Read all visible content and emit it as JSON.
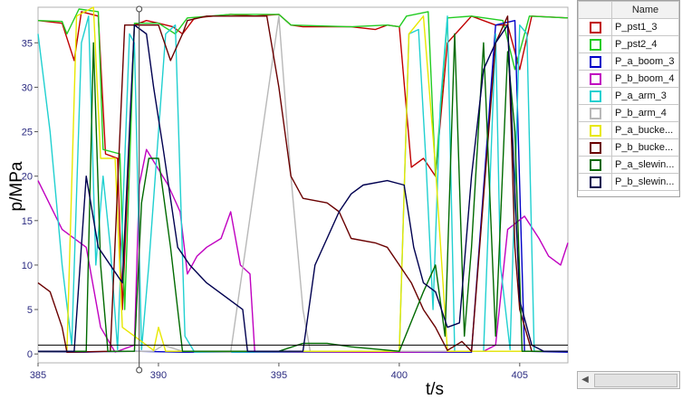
{
  "chart_data": {
    "type": "line",
    "xlabel": "t/s",
    "ylabel": "p/MPa",
    "xlim": [
      385,
      407
    ],
    "ylim": [
      -1,
      39
    ],
    "xticks": [
      385,
      390,
      395,
      400,
      405
    ],
    "yticks": [
      0,
      5,
      10,
      15,
      20,
      25,
      30,
      35
    ],
    "grid": false,
    "legend_position": "right",
    "cursor": {
      "x": 389.2
    },
    "series": [
      {
        "name": "P_pst1_3",
        "color": "#c00000",
        "points": [
          [
            385,
            37.5
          ],
          [
            386,
            37.2
          ],
          [
            386.5,
            33
          ],
          [
            386.8,
            38.5
          ],
          [
            387.5,
            38
          ],
          [
            387.8,
            22.5
          ],
          [
            388.3,
            22
          ],
          [
            388.5,
            5
          ],
          [
            389,
            37
          ],
          [
            389.5,
            37.5
          ],
          [
            390,
            37.2
          ],
          [
            390.6,
            36.8
          ],
          [
            391,
            36
          ],
          [
            391.5,
            37.8
          ],
          [
            393,
            38.2
          ],
          [
            394,
            38
          ],
          [
            395,
            38.2
          ],
          [
            395.5,
            37
          ],
          [
            396,
            36.8
          ],
          [
            398,
            36.8
          ],
          [
            399,
            36.5
          ],
          [
            399.5,
            37
          ],
          [
            400,
            36.8
          ],
          [
            400.5,
            21
          ],
          [
            401,
            22
          ],
          [
            401.5,
            20
          ],
          [
            402,
            35
          ],
          [
            403,
            38
          ],
          [
            404,
            37
          ],
          [
            404.5,
            37
          ],
          [
            405,
            32
          ],
          [
            405.5,
            38
          ],
          [
            407,
            37.8
          ]
        ]
      },
      {
        "name": "P_pst2_4",
        "color": "#22cc22",
        "points": [
          [
            385,
            37.5
          ],
          [
            386,
            37.4
          ],
          [
            386.2,
            36
          ],
          [
            386.7,
            38.8
          ],
          [
            387.5,
            38.5
          ],
          [
            387.7,
            23
          ],
          [
            388.4,
            22.5
          ],
          [
            388.6,
            5
          ],
          [
            389,
            37.2
          ],
          [
            390,
            37.2
          ],
          [
            390.7,
            36
          ],
          [
            391.2,
            37.8
          ],
          [
            393,
            38.2
          ],
          [
            395,
            38.2
          ],
          [
            395.5,
            37
          ],
          [
            398,
            36.8
          ],
          [
            399.5,
            37
          ],
          [
            400,
            36.8
          ],
          [
            400.3,
            38
          ],
          [
            401.2,
            38.5
          ],
          [
            401.5,
            20
          ],
          [
            402,
            37.8
          ],
          [
            403,
            38
          ],
          [
            404.3,
            37.5
          ],
          [
            404.8,
            32
          ],
          [
            405.4,
            38
          ],
          [
            407,
            37.8
          ]
        ]
      },
      {
        "name": "P_a_boom_3",
        "color": "#0000c8",
        "points": [
          [
            385,
            0.2
          ],
          [
            387,
            0.2
          ],
          [
            389,
            0.3
          ],
          [
            391,
            0.2
          ],
          [
            395,
            0.2
          ],
          [
            400,
            0.2
          ],
          [
            403,
            0.2
          ],
          [
            404,
            37
          ],
          [
            404.8,
            37.5
          ],
          [
            405.2,
            0.3
          ],
          [
            407,
            0.2
          ]
        ]
      },
      {
        "name": "P_b_boom_4",
        "color": "#c000c0",
        "points": [
          [
            385,
            19.5
          ],
          [
            386,
            14
          ],
          [
            387,
            12
          ],
          [
            387.6,
            3
          ],
          [
            388.2,
            0.2
          ],
          [
            389,
            1
          ],
          [
            389.2,
            19
          ],
          [
            389.5,
            23
          ],
          [
            390.4,
            19
          ],
          [
            390.9,
            16
          ],
          [
            391.2,
            9
          ],
          [
            391.6,
            11
          ],
          [
            392,
            12
          ],
          [
            392.6,
            13
          ],
          [
            393,
            16
          ],
          [
            393.4,
            10
          ],
          [
            393.8,
            9
          ],
          [
            394,
            0.2
          ],
          [
            400,
            0.2
          ],
          [
            403.5,
            0.3
          ],
          [
            404,
            1
          ],
          [
            404.5,
            14
          ],
          [
            405.2,
            15.5
          ],
          [
            405.8,
            13
          ],
          [
            406.2,
            11
          ],
          [
            406.7,
            10
          ],
          [
            407,
            12.5
          ]
        ]
      },
      {
        "name": "P_a_arm_3",
        "color": "#20d0d0",
        "points": [
          [
            385,
            36
          ],
          [
            385.5,
            25
          ],
          [
            386,
            10
          ],
          [
            386.4,
            1
          ],
          [
            386.8,
            35
          ],
          [
            387.1,
            38
          ],
          [
            387.4,
            10
          ],
          [
            387.7,
            20
          ],
          [
            388,
            12
          ],
          [
            388.3,
            0.5
          ],
          [
            388.8,
            36
          ],
          [
            389,
            35
          ],
          [
            389.3,
            0.5
          ],
          [
            389.6,
            10
          ],
          [
            390.3,
            36
          ],
          [
            390.7,
            37
          ],
          [
            391.1,
            2
          ],
          [
            391.5,
            0.2
          ],
          [
            400,
            0.3
          ],
          [
            400.4,
            36
          ],
          [
            400.8,
            36.5
          ],
          [
            401.1,
            22
          ],
          [
            401.4,
            5
          ],
          [
            401.7,
            28
          ],
          [
            402,
            38
          ],
          [
            402.3,
            0.3
          ],
          [
            403.5,
            0.3
          ],
          [
            404,
            36
          ],
          [
            404.2,
            10
          ],
          [
            404.6,
            0.5
          ],
          [
            405,
            37
          ],
          [
            405.3,
            36
          ],
          [
            405.6,
            0.3
          ],
          [
            407,
            0.3
          ]
        ]
      },
      {
        "name": "P_b_arm_4",
        "color": "#b8b8b8",
        "points": [
          [
            385,
            0.2
          ],
          [
            389.8,
            0.3
          ],
          [
            390.2,
            1
          ],
          [
            391,
            0.3
          ],
          [
            393,
            0.2
          ],
          [
            395,
            38
          ],
          [
            395.5,
            20
          ],
          [
            396,
            5
          ],
          [
            396.3,
            0.3
          ],
          [
            400,
            0.3
          ],
          [
            401,
            0.3
          ],
          [
            402,
            0.3
          ],
          [
            403,
            0.3
          ],
          [
            405,
            0.3
          ],
          [
            407,
            0.3
          ]
        ]
      },
      {
        "name": "P_a_bucke...",
        "color": "#e8e800",
        "points": [
          [
            385,
            0.3
          ],
          [
            386.2,
            0.3
          ],
          [
            386.6,
            38
          ],
          [
            387.3,
            39
          ],
          [
            387.6,
            22
          ],
          [
            388.2,
            22
          ],
          [
            388.5,
            3
          ],
          [
            389.8,
            0.4
          ],
          [
            390,
            3
          ],
          [
            390.3,
            0.3
          ],
          [
            400,
            0.3
          ],
          [
            400.4,
            36
          ],
          [
            401,
            38
          ],
          [
            401.5,
            21
          ],
          [
            402,
            0.3
          ],
          [
            407,
            0.3
          ]
        ]
      },
      {
        "name": "P_b_bucke...",
        "color": "#6a0000",
        "points": [
          [
            385,
            8
          ],
          [
            385.5,
            7
          ],
          [
            386,
            3
          ],
          [
            386.2,
            0.2
          ],
          [
            388,
            0.3
          ],
          [
            388.6,
            37
          ],
          [
            389.6,
            37
          ],
          [
            390,
            37
          ],
          [
            390.5,
            33
          ],
          [
            391,
            36
          ],
          [
            391.2,
            37.5
          ],
          [
            392,
            38
          ],
          [
            394.5,
            38
          ],
          [
            395,
            30
          ],
          [
            395.5,
            20
          ],
          [
            396,
            17.5
          ],
          [
            397,
            17
          ],
          [
            397.5,
            16
          ],
          [
            398,
            13
          ],
          [
            399,
            12.5
          ],
          [
            399.5,
            12
          ],
          [
            400,
            10
          ],
          [
            400.5,
            8
          ],
          [
            401,
            5
          ],
          [
            401.5,
            3
          ],
          [
            402,
            0.4
          ],
          [
            402.6,
            1.4
          ],
          [
            403,
            0.3
          ],
          [
            404,
            35
          ],
          [
            404.5,
            38
          ],
          [
            404.8,
            12
          ],
          [
            405,
            5
          ],
          [
            405.5,
            0.3
          ],
          [
            407,
            0.3
          ]
        ]
      },
      {
        "name": "P_a_slewin...",
        "color": "#006a00",
        "points": [
          [
            385,
            0.3
          ],
          [
            387,
            0.3
          ],
          [
            387.3,
            35
          ],
          [
            387.6,
            10
          ],
          [
            387.9,
            0.3
          ],
          [
            389,
            0.3
          ],
          [
            389.3,
            17
          ],
          [
            389.6,
            22
          ],
          [
            390,
            22
          ],
          [
            390.5,
            12
          ],
          [
            391,
            0.3
          ],
          [
            395,
            0.3
          ],
          [
            396,
            1.2
          ],
          [
            397,
            1.2
          ],
          [
            398,
            0.8
          ],
          [
            400,
            0.3
          ],
          [
            401,
            7
          ],
          [
            401.5,
            10
          ],
          [
            401.9,
            2
          ],
          [
            402.3,
            36
          ],
          [
            402.7,
            2
          ],
          [
            403,
            12
          ],
          [
            403.5,
            35
          ],
          [
            404,
            2
          ],
          [
            404.5,
            34
          ],
          [
            404.8,
            25
          ],
          [
            405.1,
            0.3
          ],
          [
            407,
            0.3
          ]
        ]
      },
      {
        "name": "P_b_slewin...",
        "color": "#000050",
        "points": [
          [
            385,
            0.3
          ],
          [
            386.5,
            0.3
          ],
          [
            387,
            20
          ],
          [
            387.5,
            12
          ],
          [
            388.5,
            8
          ],
          [
            389,
            37
          ],
          [
            389.5,
            36
          ],
          [
            389.8,
            30
          ],
          [
            390.2,
            23
          ],
          [
            390.8,
            12
          ],
          [
            391.3,
            10
          ],
          [
            392,
            8
          ],
          [
            393,
            6
          ],
          [
            393.5,
            5
          ],
          [
            393.7,
            0.3
          ],
          [
            396,
            0.3
          ],
          [
            396.5,
            10
          ],
          [
            397,
            13
          ],
          [
            397.5,
            16
          ],
          [
            398,
            18
          ],
          [
            398.5,
            19
          ],
          [
            399.5,
            19.5
          ],
          [
            400.2,
            19
          ],
          [
            400.6,
            12
          ],
          [
            401,
            8
          ],
          [
            401.5,
            7
          ],
          [
            402,
            3
          ],
          [
            402.5,
            3.5
          ],
          [
            403,
            20
          ],
          [
            403.5,
            32
          ],
          [
            404,
            35
          ],
          [
            404.5,
            37
          ],
          [
            405,
            6
          ],
          [
            405.5,
            1
          ],
          [
            406,
            0.3
          ],
          [
            407,
            0.3
          ]
        ]
      }
    ]
  },
  "legend": {
    "header": "Name"
  }
}
